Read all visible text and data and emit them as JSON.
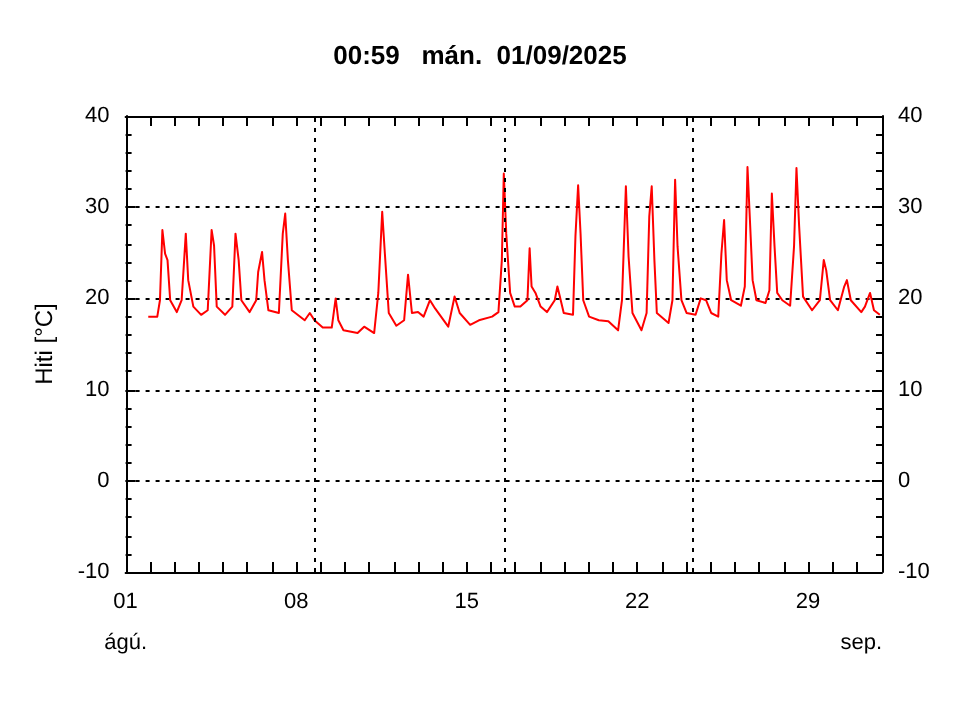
{
  "chart_data": {
    "type": "line",
    "title": "00:59   mán.  01/09/2025",
    "ylabel": "Hiti [°C]",
    "annotations": [
      "ágú.",
      "sep."
    ],
    "xlim": [
      1,
      32.04
    ],
    "xticks": [
      {
        "value": 1,
        "label": "01"
      },
      {
        "value": 2,
        "label": null
      },
      {
        "value": 3,
        "label": null
      },
      {
        "value": 4,
        "label": null
      },
      {
        "value": 5,
        "label": null
      },
      {
        "value": 6,
        "label": null
      },
      {
        "value": 7,
        "label": null
      },
      {
        "value": 8,
        "label": "08"
      },
      {
        "value": 9,
        "label": null
      },
      {
        "value": 10,
        "label": null
      },
      {
        "value": 11,
        "label": null
      },
      {
        "value": 12,
        "label": null
      },
      {
        "value": 13,
        "label": null
      },
      {
        "value": 14,
        "label": null
      },
      {
        "value": 15,
        "label": "15"
      },
      {
        "value": 16,
        "label": null
      },
      {
        "value": 17,
        "label": null
      },
      {
        "value": 18,
        "label": null
      },
      {
        "value": 19,
        "label": null
      },
      {
        "value": 20,
        "label": null
      },
      {
        "value": 21,
        "label": null
      },
      {
        "value": 22,
        "label": "22"
      },
      {
        "value": 23,
        "label": null
      },
      {
        "value": 24,
        "label": null
      },
      {
        "value": 25,
        "label": null
      },
      {
        "value": 26,
        "label": null
      },
      {
        "value": 27,
        "label": null
      },
      {
        "value": 28,
        "label": null
      },
      {
        "value": 29,
        "label": "29"
      },
      {
        "value": 30,
        "label": null
      },
      {
        "value": 31,
        "label": null
      }
    ],
    "ylim": [
      -10,
      40
    ],
    "yticks": [
      -10,
      0,
      10,
      20,
      30,
      40
    ],
    "y2lim": [
      -10,
      40
    ],
    "y2ticks": [
      -10,
      0,
      10,
      20,
      30,
      40
    ],
    "grid": "y",
    "marker": "none",
    "line_style": "solid",
    "ref_lines": [
      {
        "axis": "x",
        "value": 8.76,
        "label": null,
        "color": "#000000",
        "line_style": "dotted"
      },
      {
        "axis": "x",
        "value": 16.52,
        "label": null,
        "color": "#000000",
        "line_style": "dotted"
      },
      {
        "axis": "x",
        "value": 24.28,
        "label": null,
        "color": "#000000",
        "line_style": "dotted"
      }
    ],
    "series": [
      {
        "color": "#ff0000",
        "x": [
          1.93,
          2.3,
          2.41,
          2.51,
          2.62,
          2.72,
          2.83,
          3.1,
          3.3,
          3.47,
          3.57,
          3.78,
          4.1,
          4.37,
          4.45,
          4.53,
          4.63,
          4.74,
          5.08,
          5.38,
          5.51,
          5.64,
          5.75,
          6.09,
          6.36,
          6.44,
          6.6,
          6.7,
          6.86,
          7.29,
          7.45,
          7.55,
          7.66,
          7.82,
          8.35,
          8.56,
          8.75,
          9.09,
          9.46,
          9.62,
          9.73,
          9.94,
          10.52,
          10.79,
          11.2,
          11.37,
          11.53,
          11.64,
          11.8,
          12.11,
          12.43,
          12.59,
          12.75,
          13.0,
          13.23,
          13.49,
          13.7,
          14.24,
          14.5,
          14.71,
          15.14,
          15.5,
          16.04,
          16.3,
          16.44,
          16.52,
          16.62,
          16.78,
          16.97,
          17.2,
          17.49,
          17.58,
          17.66,
          17.82,
          18.03,
          18.29,
          18.61,
          18.72,
          18.82,
          18.98,
          19.36,
          19.46,
          19.57,
          19.67,
          19.78,
          20.02,
          20.42,
          20.81,
          21.21,
          21.37,
          21.53,
          21.64,
          21.8,
          22.17,
          22.38,
          22.49,
          22.59,
          22.7,
          22.8,
          23.28,
          23.44,
          23.55,
          23.65,
          23.81,
          24.02,
          24.39,
          24.6,
          24.82,
          25.03,
          25.32,
          25.45,
          25.56,
          25.67,
          25.85,
          26.25,
          26.41,
          26.52,
          26.62,
          26.73,
          26.89,
          27.26,
          27.42,
          27.52,
          27.63,
          27.74,
          27.95,
          28.27,
          28.43,
          28.53,
          28.64,
          28.8,
          29.17,
          29.49,
          29.65,
          29.75,
          29.91,
          30.23,
          30.49,
          30.6,
          30.76,
          31.19,
          31.34,
          31.55,
          31.71,
          31.95
        ],
        "values": [
          18.0,
          18.0,
          19.8,
          27.5,
          24.9,
          24.2,
          19.8,
          18.5,
          19.8,
          27.1,
          22.0,
          19.1,
          18.2,
          18.7,
          23.1,
          27.5,
          25.8,
          19.1,
          18.2,
          19.1,
          27.1,
          24.2,
          19.8,
          18.5,
          19.8,
          22.9,
          25.1,
          22.0,
          18.7,
          18.4,
          27.1,
          29.3,
          24.2,
          18.7,
          17.6,
          18.4,
          17.6,
          16.8,
          16.8,
          20.0,
          17.6,
          16.5,
          16.2,
          16.9,
          16.2,
          20.6,
          29.5,
          24.9,
          18.4,
          17.0,
          17.6,
          22.6,
          18.4,
          18.5,
          18.0,
          19.8,
          18.9,
          16.9,
          20.2,
          18.4,
          17.1,
          17.6,
          18.0,
          18.5,
          24.2,
          33.7,
          27.1,
          20.6,
          19.1,
          19.1,
          19.8,
          25.5,
          21.3,
          20.6,
          19.1,
          18.5,
          19.8,
          21.3,
          20.2,
          18.4,
          18.2,
          26.8,
          32.4,
          27.1,
          19.8,
          18.0,
          17.6,
          17.5,
          16.5,
          19.8,
          32.3,
          24.6,
          18.4,
          16.5,
          18.4,
          29.0,
          32.3,
          24.2,
          18.4,
          17.3,
          19.8,
          33.0,
          25.7,
          19.8,
          18.4,
          18.2,
          20.0,
          19.8,
          18.4,
          18.0,
          24.9,
          28.6,
          22.0,
          19.8,
          19.2,
          21.3,
          34.4,
          28.6,
          22.0,
          19.8,
          19.5,
          20.9,
          31.5,
          25.7,
          20.6,
          19.8,
          19.2,
          25.7,
          34.3,
          27.9,
          20.2,
          18.7,
          19.8,
          24.2,
          23.1,
          19.8,
          18.7,
          21.3,
          22.0,
          19.8,
          18.5,
          19.1,
          20.6,
          18.7,
          18.2
        ]
      }
    ]
  }
}
